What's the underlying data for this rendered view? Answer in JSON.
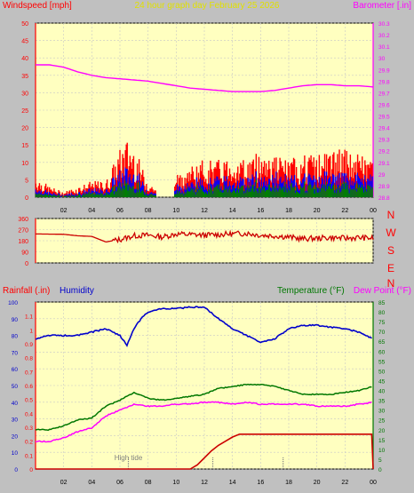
{
  "header": {
    "left_label": "Windspeed [mph]",
    "center_label": "24 hour graph day   February 25 2026",
    "right_label": "Barometer [.in]"
  },
  "colors": {
    "background": "#c0c0c0",
    "plot_bg": "#ffffc0",
    "grid": "#c8c8c8",
    "wind_gust": "#ff0000",
    "wind_avg": "#0000ff",
    "wind_low": "#008000",
    "barometer": "#ff00ff",
    "direction": "#cc0000",
    "humidity": "#0000cc",
    "temperature": "#007700",
    "dewpoint": "#ff00ff",
    "rain": "#cc0000",
    "tide": "#808080"
  },
  "chart_data": [
    {
      "type": "line",
      "name": "wind-barometer",
      "title": "24 hour graph day   February 25 2026",
      "ylabel": "Windspeed [mph]",
      "y2label": "Barometer [.in]",
      "ylim": [
        0,
        50
      ],
      "y2lim": [
        28.8,
        30.3
      ],
      "xlim": [
        0,
        24
      ],
      "x_ticks": [
        "02",
        "04",
        "06",
        "08",
        "10",
        "12",
        "14",
        "16",
        "18",
        "20",
        "22",
        "00"
      ],
      "y_ticks": [
        0,
        5,
        10,
        15,
        20,
        25,
        30,
        35,
        40,
        45,
        50
      ],
      "y2_ticks": [
        "28.8",
        "28.9",
        "29",
        "29.1",
        "29.2",
        "29.3",
        "29.4",
        "29.5",
        "29.6",
        "29.7",
        "29.8",
        "29.9",
        "30",
        "30.1",
        "30.2",
        "30.3"
      ],
      "series": [
        {
          "name": "Windspeed",
          "x": [
            0,
            1,
            2,
            3,
            4,
            5,
            6,
            6.5,
            7,
            7.5,
            8,
            9,
            10,
            11,
            12,
            13,
            14,
            15,
            16,
            17,
            18,
            19,
            20,
            21,
            22,
            23,
            24
          ],
          "values": [
            4,
            2,
            1,
            2,
            3,
            3,
            9,
            11,
            10,
            6,
            3,
            1,
            4,
            6,
            7,
            7,
            8,
            7,
            9,
            8,
            7,
            8,
            8,
            9,
            9,
            8,
            8
          ]
        },
        {
          "name": "Barometer",
          "x": [
            0,
            1,
            2,
            3,
            4,
            5,
            6,
            7,
            8,
            9,
            10,
            11,
            12,
            13,
            14,
            15,
            16,
            17,
            18,
            19,
            20,
            21,
            22,
            23,
            24
          ],
          "values": [
            29.94,
            29.94,
            29.92,
            29.88,
            29.85,
            29.83,
            29.82,
            29.81,
            29.8,
            29.78,
            29.76,
            29.74,
            29.73,
            29.72,
            29.71,
            29.71,
            29.71,
            29.72,
            29.74,
            29.76,
            29.77,
            29.77,
            29.76,
            29.76,
            29.75
          ]
        }
      ]
    },
    {
      "type": "line",
      "name": "wind-direction",
      "ylim": [
        0,
        360
      ],
      "xlim": [
        0,
        24
      ],
      "y_ticks": [
        0,
        90,
        180,
        270,
        360
      ],
      "compass": [
        "N",
        "W",
        "S",
        "E",
        "N"
      ],
      "series": [
        {
          "name": "Wind direction",
          "x": [
            0,
            2,
            3,
            4,
            5,
            6,
            7,
            8,
            9,
            10,
            11,
            12,
            13,
            14,
            15,
            16,
            17,
            18,
            19,
            20,
            21,
            22,
            23,
            24
          ],
          "values": [
            235,
            232,
            220,
            215,
            170,
            190,
            220,
            225,
            210,
            235,
            230,
            225,
            230,
            235,
            240,
            225,
            220,
            210,
            195,
            200,
            205,
            200,
            205,
            200
          ]
        }
      ]
    },
    {
      "type": "line",
      "name": "rain-humidity-temp",
      "ylabel": "Rainfall (.in)",
      "ylabel2": "Humidity",
      "y2label": "Temperature (°F)",
      "y2label2": "Dew Point (°F)",
      "ylim_humidity": [
        0,
        100
      ],
      "ylim_rain": [
        0,
        1.2
      ],
      "y2lim": [
        0,
        85
      ],
      "xlim": [
        0,
        24
      ],
      "humidity_ticks": [
        0,
        10,
        20,
        30,
        40,
        50,
        60,
        70,
        80,
        90,
        100
      ],
      "rain_ticks": [
        "0",
        "0.1",
        "0.2",
        "0.3",
        "0.4",
        "0.5",
        "0.6",
        "0.7",
        "0.8",
        "0.9",
        "1",
        "1.1"
      ],
      "temp_ticks": [
        0,
        5,
        10,
        15,
        20,
        25,
        30,
        35,
        40,
        45,
        50,
        55,
        60,
        65,
        70,
        75,
        80,
        85
      ],
      "annotation": "High tide",
      "series": [
        {
          "name": "Humidity",
          "x": [
            0,
            1,
            2,
            3,
            4,
            5,
            6,
            6.5,
            7,
            7.5,
            8,
            9,
            10,
            11,
            12,
            13,
            14,
            15,
            16,
            17,
            18,
            19,
            20,
            21,
            22,
            23,
            24
          ],
          "values": [
            78,
            80,
            80,
            80,
            82,
            84,
            80,
            74,
            84,
            90,
            94,
            96,
            96,
            97,
            97,
            90,
            84,
            80,
            76,
            78,
            84,
            86,
            86,
            85,
            84,
            82,
            78
          ]
        },
        {
          "name": "Temperature",
          "x": [
            0,
            1,
            2,
            3,
            4,
            5,
            6,
            7,
            8,
            9,
            10,
            11,
            12,
            13,
            14,
            15,
            16,
            17,
            18,
            19,
            20,
            21,
            22,
            23,
            24
          ],
          "values": [
            20,
            20,
            22,
            25,
            26,
            32,
            35,
            39,
            36,
            35,
            36,
            37,
            38,
            41,
            42,
            43,
            43,
            42,
            40,
            38,
            38,
            38,
            39,
            40,
            42
          ]
        },
        {
          "name": "Dew Point",
          "x": [
            0,
            1,
            2,
            3,
            4,
            5,
            6,
            7,
            8,
            9,
            10,
            11,
            12,
            13,
            14,
            15,
            16,
            17,
            18,
            19,
            20,
            21,
            22,
            23,
            24
          ],
          "values": [
            14,
            14,
            16,
            19,
            21,
            27,
            30,
            33,
            32,
            32,
            33,
            33,
            34,
            34,
            33,
            34,
            33,
            33,
            33,
            33,
            32,
            32,
            32,
            33,
            34
          ]
        },
        {
          "name": "Rainfall",
          "x": [
            0,
            1,
            2,
            3,
            4,
            5,
            6,
            7,
            8,
            9,
            10,
            11,
            11.5,
            12,
            12.5,
            13,
            13.5,
            14,
            14.5,
            15,
            16,
            17,
            18,
            19,
            20,
            21,
            22,
            23,
            23.9,
            24
          ],
          "values": [
            0,
            0,
            0,
            0,
            0,
            0,
            0,
            0,
            0,
            0,
            0,
            0,
            0.03,
            0.08,
            0.13,
            0.17,
            0.2,
            0.23,
            0.25,
            0.25,
            0.25,
            0.25,
            0.25,
            0.25,
            0.25,
            0.25,
            0.25,
            0.25,
            0.25,
            0
          ]
        }
      ]
    }
  ]
}
